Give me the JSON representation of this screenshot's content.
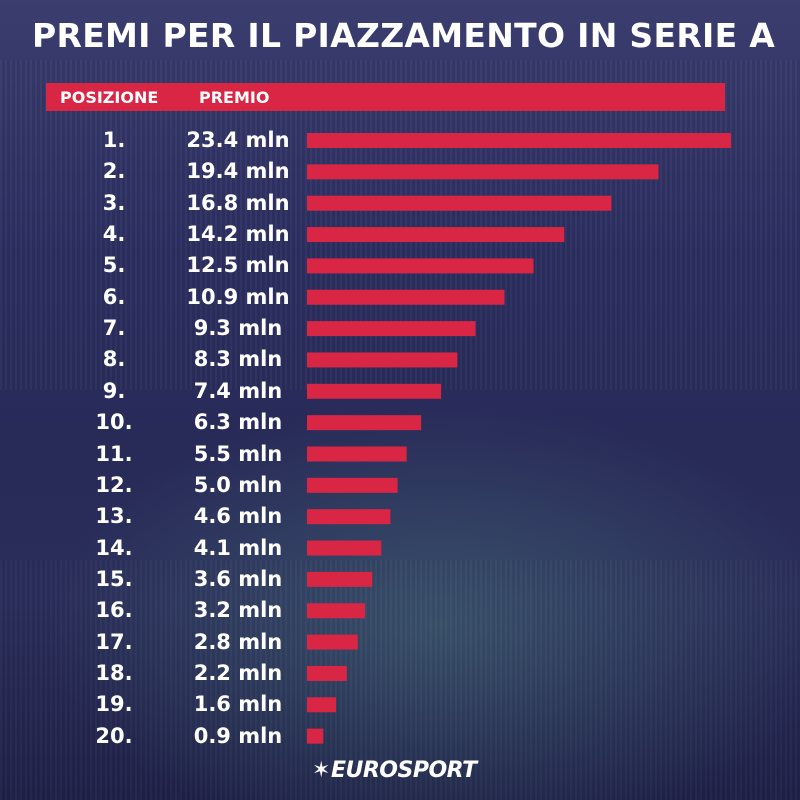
{
  "chart_data": {
    "type": "bar",
    "title": "PREMI PER IL PIAZZAMENTO IN SERIE A",
    "column_headers": [
      "POSIZIONE",
      "PREMIO"
    ],
    "categories": [
      "1.",
      "2.",
      "3.",
      "4.",
      "5.",
      "6.",
      "7.",
      "8.",
      "9.",
      "10.",
      "11.",
      "12.",
      "13.",
      "14.",
      "15.",
      "16.",
      "17.",
      "18.",
      "19.",
      "20."
    ],
    "values": [
      23.4,
      19.4,
      16.8,
      14.2,
      12.5,
      10.9,
      9.3,
      8.3,
      7.4,
      6.3,
      5.5,
      5.0,
      4.6,
      4.1,
      3.6,
      3.2,
      2.8,
      2.2,
      1.6,
      0.9
    ],
    "value_labels": [
      "23.4 mln",
      "19.4 mln",
      "16.8 mln",
      "14.2 mln",
      "12.5 mln",
      "10.9 mln",
      "9.3 mln",
      "8.3 mln",
      "7.4 mln",
      "6.3 mln",
      "5.5 mln",
      "5.0 mln",
      "4.6 mln",
      "4.1 mln",
      "3.6 mln",
      "3.2 mln",
      "2.8 mln",
      "2.2 mln",
      "1.6 mln",
      "0.9 mln"
    ],
    "orientation": "horizontal",
    "xlim": [
      0,
      23.4
    ],
    "bar_color": "#d92645",
    "grid": false
  },
  "brand": {
    "logo_text": "EUROSPORT",
    "accent_color": "#d92645"
  }
}
